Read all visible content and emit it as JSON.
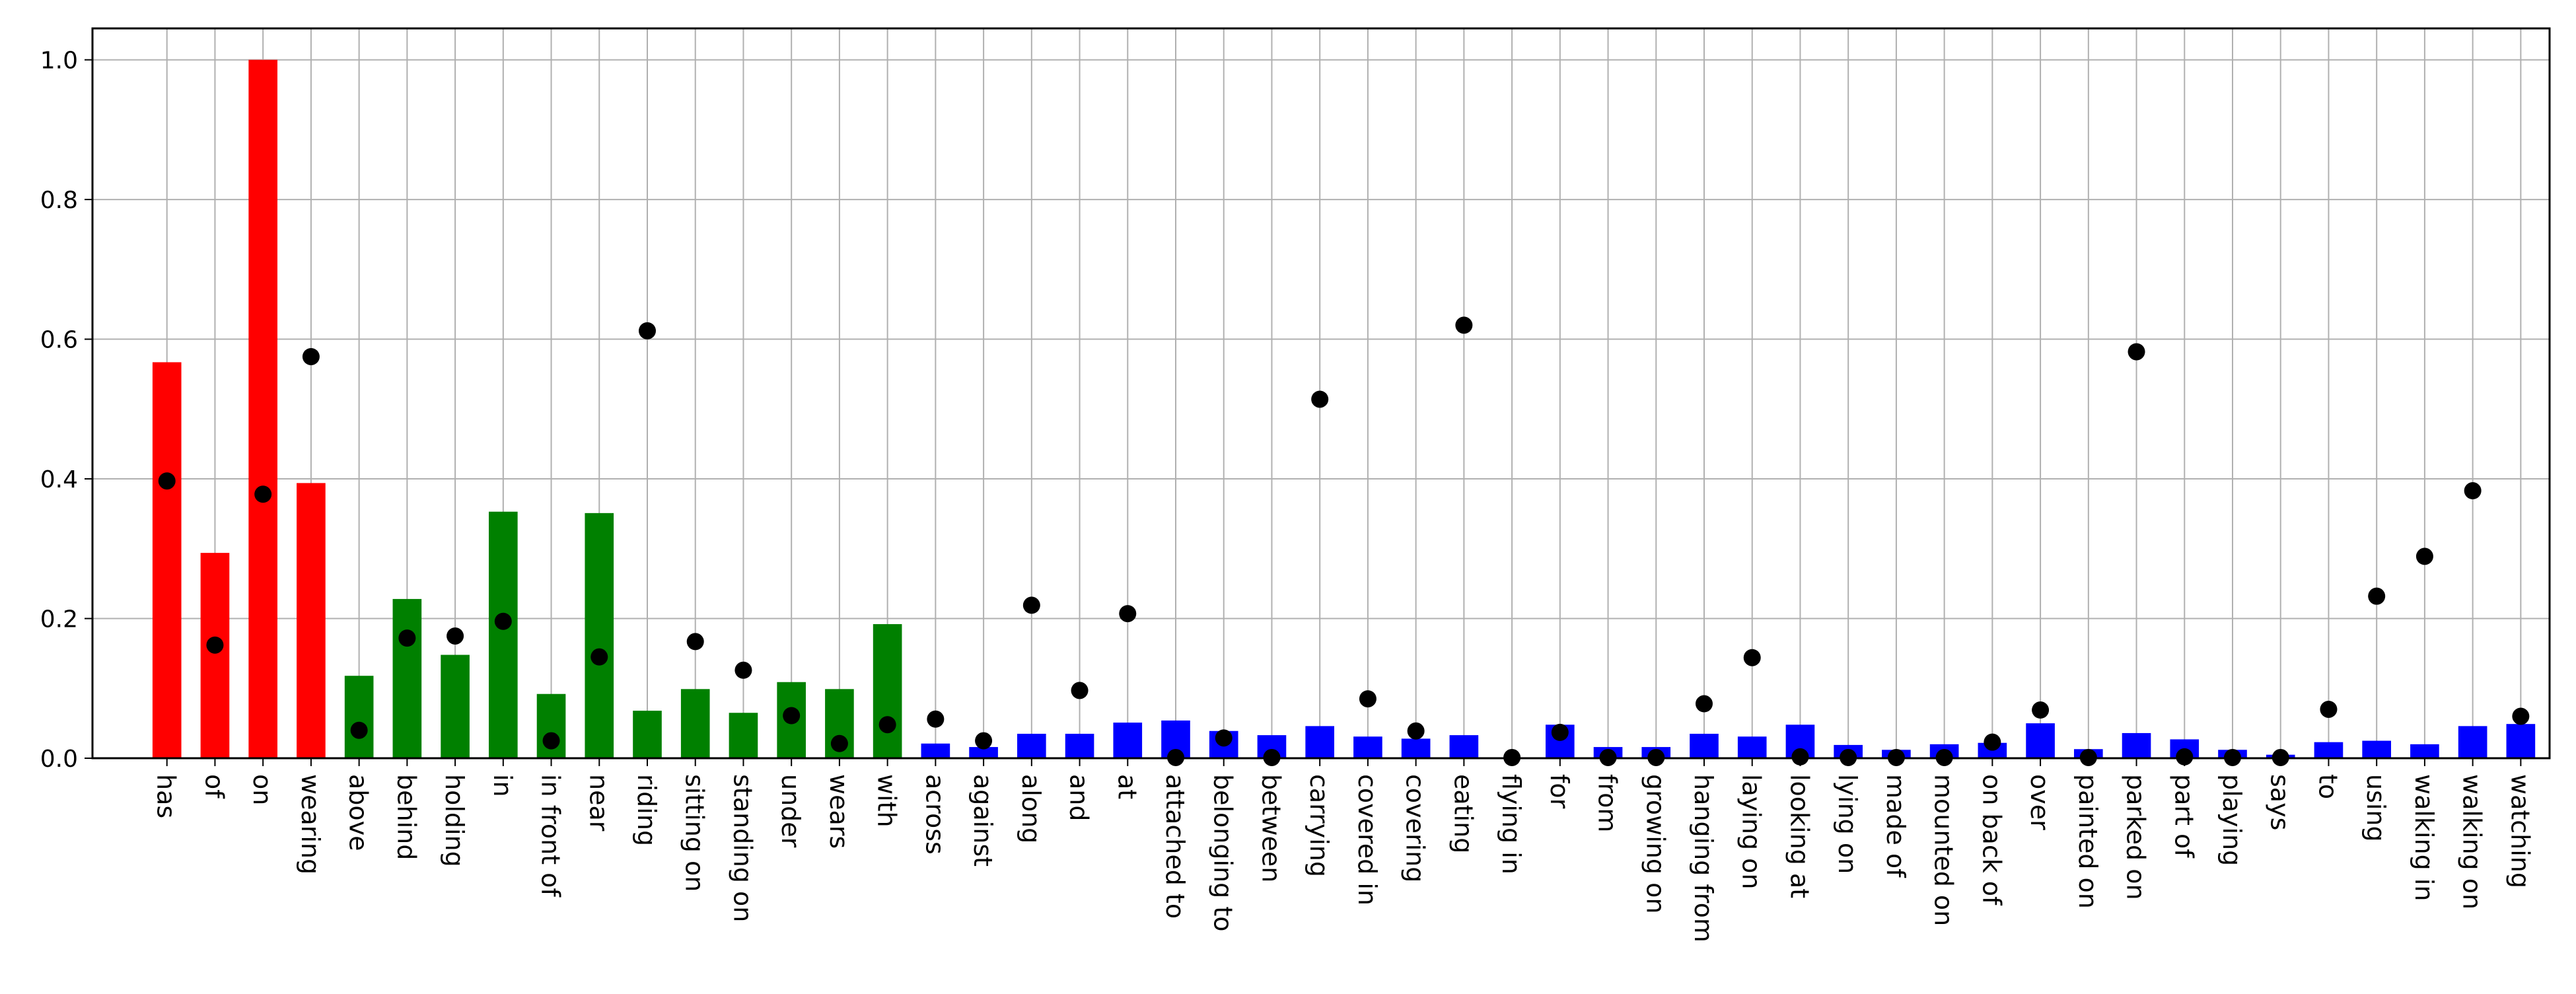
{
  "chart_data": {
    "type": "bar",
    "title": "",
    "xlabel": "",
    "ylabel": "",
    "ylim": [
      0,
      1.045
    ],
    "grid": true,
    "legend": "none",
    "y_ticks": [
      "0.0",
      "0.2",
      "0.4",
      "0.6",
      "0.8",
      "1.0"
    ],
    "group_colors": {
      "head": "#ff0000",
      "body": "#008000",
      "tail": "#0000ff"
    },
    "marker_color": "#000000",
    "categories": [
      "has",
      "of",
      "on",
      "wearing",
      "above",
      "behind",
      "holding",
      "in",
      "in front of",
      "near",
      "riding",
      "sitting on",
      "standing on",
      "under",
      "wears",
      "with",
      "across",
      "against",
      "along",
      "and",
      "at",
      "attached to",
      "belonging to",
      "between",
      "carrying",
      "covered in",
      "covering",
      "eating",
      "flying in",
      "for",
      "from",
      "growing on",
      "hanging from",
      "laying on",
      "looking at",
      "lying on",
      "made of",
      "mounted on",
      "on back of",
      "over",
      "painted on",
      "parked on",
      "part of",
      "playing",
      "says",
      "to",
      "using",
      "walking in",
      "walking on",
      "watching"
    ],
    "groups": [
      "head",
      "head",
      "head",
      "head",
      "body",
      "body",
      "body",
      "body",
      "body",
      "body",
      "body",
      "body",
      "body",
      "body",
      "body",
      "body",
      "tail",
      "tail",
      "tail",
      "tail",
      "tail",
      "tail",
      "tail",
      "tail",
      "tail",
      "tail",
      "tail",
      "tail",
      "tail",
      "tail",
      "tail",
      "tail",
      "tail",
      "tail",
      "tail",
      "tail",
      "tail",
      "tail",
      "tail",
      "tail",
      "tail",
      "tail",
      "tail",
      "tail",
      "tail",
      "tail",
      "tail",
      "tail",
      "tail",
      "tail"
    ],
    "series": [
      {
        "kind": "bar",
        "values": [
          0.567,
          0.294,
          1.0,
          0.394,
          0.118,
          0.228,
          0.148,
          0.353,
          0.092,
          0.351,
          0.068,
          0.099,
          0.065,
          0.109,
          0.099,
          0.192,
          0.021,
          0.016,
          0.035,
          0.035,
          0.051,
          0.054,
          0.039,
          0.033,
          0.046,
          0.031,
          0.028,
          0.033,
          0.001,
          0.048,
          0.016,
          0.016,
          0.035,
          0.031,
          0.048,
          0.019,
          0.012,
          0.02,
          0.022,
          0.05,
          0.013,
          0.036,
          0.027,
          0.012,
          0.005,
          0.023,
          0.025,
          0.02,
          0.046,
          0.049
        ]
      },
      {
        "kind": "scatter",
        "values": [
          0.397,
          0.162,
          0.378,
          0.575,
          0.04,
          0.172,
          0.175,
          0.196,
          0.025,
          0.145,
          0.612,
          0.167,
          0.126,
          0.061,
          0.021,
          0.048,
          0.056,
          0.025,
          0.219,
          0.097,
          0.207,
          0.001,
          0.029,
          0.001,
          0.514,
          0.085,
          0.039,
          0.62,
          0.001,
          0.037,
          0.001,
          0.001,
          0.078,
          0.144,
          0.002,
          0.001,
          0.001,
          0.001,
          0.023,
          0.069,
          0.001,
          0.582,
          0.002,
          0.001,
          0.001,
          0.07,
          0.232,
          0.289,
          0.383,
          0.06
        ]
      }
    ]
  }
}
